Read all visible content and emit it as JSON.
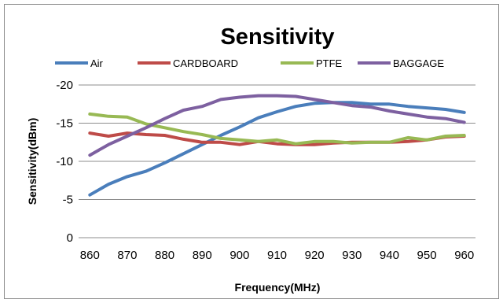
{
  "chart_data": {
    "type": "line",
    "title": "Sensitivity",
    "xlabel": "Frequency(MHz)",
    "ylabel": "Sensitivity(dBm)",
    "x": [
      860,
      865,
      870,
      875,
      880,
      885,
      890,
      895,
      900,
      905,
      910,
      915,
      920,
      925,
      930,
      935,
      940,
      945,
      950,
      955,
      960
    ],
    "xticks": [
      "860",
      "870",
      "880",
      "890",
      "900",
      "910",
      "920",
      "930",
      "940",
      "950",
      "960"
    ],
    "yticks": [
      "-20",
      "-15",
      "-10",
      "-5",
      "0"
    ],
    "ylim": [
      0,
      -20
    ],
    "grid": true,
    "legend_position": "top",
    "series": [
      {
        "name": "Air",
        "color": "#4a7ebb",
        "values": [
          -5.6,
          -7.0,
          -8.0,
          -8.7,
          -9.8,
          -11.0,
          -12.2,
          -13.4,
          -14.5,
          -15.7,
          -16.5,
          -17.2,
          -17.6,
          -17.7,
          -17.7,
          -17.5,
          -17.5,
          -17.2,
          -17.0,
          -16.8,
          -16.4
        ]
      },
      {
        "name": "CARDBOARD",
        "color": "#be4b48",
        "values": [
          -13.7,
          -13.3,
          -13.7,
          -13.5,
          -13.4,
          -12.9,
          -12.5,
          -12.5,
          -12.2,
          -12.6,
          -12.3,
          -12.2,
          -12.2,
          -12.4,
          -12.5,
          -12.5,
          -12.5,
          -12.6,
          -12.8,
          -13.2,
          -13.3
        ]
      },
      {
        "name": "PTFE",
        "color": "#98b954",
        "values": [
          -16.2,
          -15.9,
          -15.8,
          -14.9,
          -14.4,
          -13.9,
          -13.5,
          -13.0,
          -12.8,
          -12.6,
          -12.8,
          -12.3,
          -12.6,
          -12.6,
          -12.4,
          -12.5,
          -12.5,
          -13.1,
          -12.8,
          -13.3,
          -13.4
        ]
      },
      {
        "name": "BAGGAGE",
        "color": "#7d60a0",
        "values": [
          -10.8,
          -12.2,
          -13.3,
          -14.4,
          -15.6,
          -16.7,
          -17.2,
          -18.1,
          -18.4,
          -18.6,
          -18.6,
          -18.5,
          -18.1,
          -17.7,
          -17.3,
          -17.1,
          -16.6,
          -16.2,
          -15.8,
          -15.6,
          -15.1
        ]
      }
    ]
  }
}
